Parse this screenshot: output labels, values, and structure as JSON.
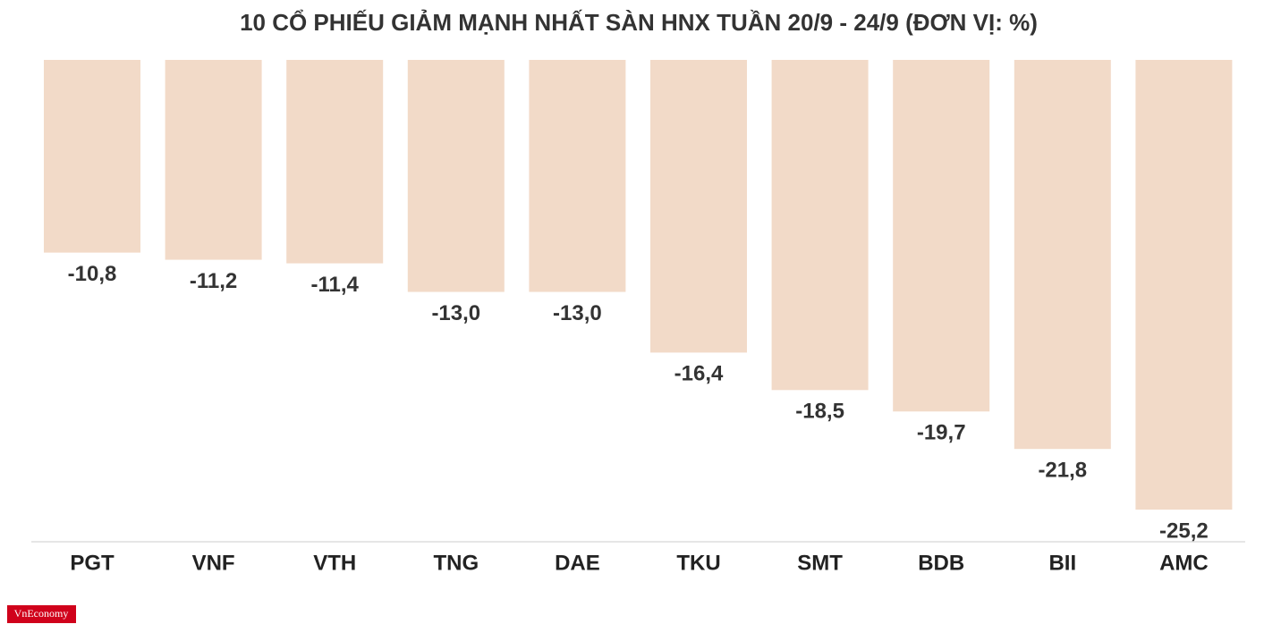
{
  "chart_data": {
    "type": "bar",
    "title": "10 CỔ PHIẾU GIẢM MẠNH NHẤT SÀN HNX TUẦN 20/9 - 24/9 (ĐƠN VỊ: %)",
    "categories": [
      "PGT",
      "VNF",
      "VTH",
      "TNG",
      "DAE",
      "TKU",
      "SMT",
      "BDB",
      "BII",
      "AMC"
    ],
    "values": [
      -10.8,
      -11.2,
      -11.4,
      -13.0,
      -13.0,
      -16.4,
      -18.5,
      -19.7,
      -21.8,
      -25.2
    ],
    "value_labels": [
      "-10,8",
      "-11,2",
      "-11,4",
      "-13,0",
      "-13,0",
      "-16,4",
      "-18,5",
      "-19,7",
      "-21,8",
      "-25,2"
    ],
    "color": "#f2dac8",
    "ylim": [
      -27,
      0
    ],
    "grid": false
  },
  "logo": "VnEconomy"
}
